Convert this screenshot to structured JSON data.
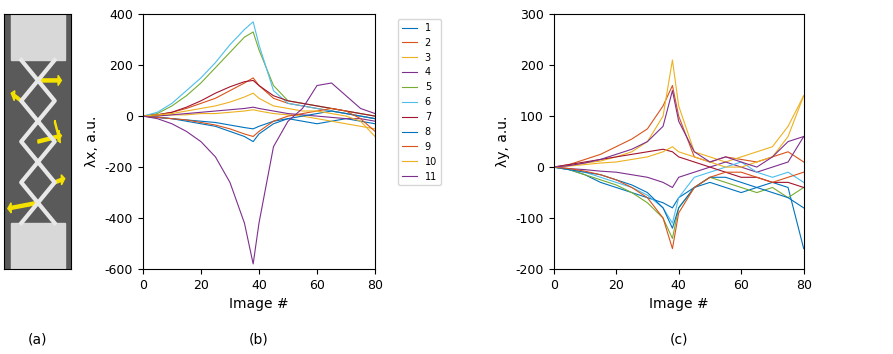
{
  "chart_data": [
    {
      "type": "line",
      "xlabel": "Image #",
      "ylabel": "λx, a.u.",
      "xlim": [
        0,
        80
      ],
      "xticks": [
        0,
        20,
        40,
        60,
        80
      ],
      "ylim": [
        -600,
        400
      ],
      "yticks": [
        -600,
        -400,
        -200,
        0,
        200,
        400
      ],
      "legend": "upper left",
      "x": [
        0,
        5,
        10,
        15,
        20,
        25,
        30,
        35,
        38,
        40,
        45,
        50,
        55,
        60,
        65,
        70,
        75,
        80
      ],
      "series": [
        {
          "name": "1",
          "color": "#0072BD",
          "values": [
            0,
            -5,
            -10,
            -15,
            -20,
            -25,
            -35,
            -45,
            -50,
            -40,
            -20,
            -10,
            -20,
            -30,
            -20,
            -10,
            -20,
            -30
          ]
        },
        {
          "name": "2",
          "color": "#D95319",
          "values": [
            0,
            5,
            15,
            30,
            50,
            70,
            100,
            130,
            150,
            120,
            70,
            50,
            40,
            30,
            20,
            10,
            0,
            -10
          ]
        },
        {
          "name": "3",
          "color": "#EDB120",
          "values": [
            0,
            2,
            5,
            5,
            10,
            10,
            15,
            20,
            25,
            20,
            10,
            5,
            0,
            -10,
            -20,
            -30,
            -40,
            -50
          ]
        },
        {
          "name": "4",
          "color": "#7E2F8E",
          "values": [
            0,
            0,
            5,
            10,
            15,
            20,
            25,
            30,
            35,
            30,
            20,
            10,
            5,
            0,
            -5,
            -10,
            -10,
            -20
          ]
        },
        {
          "name": "5",
          "color": "#77AC30",
          "values": [
            0,
            10,
            40,
            80,
            130,
            190,
            250,
            310,
            330,
            260,
            120,
            60,
            50,
            40,
            30,
            20,
            10,
            0
          ]
        },
        {
          "name": "6",
          "color": "#4DBEEE",
          "values": [
            0,
            15,
            50,
            100,
            150,
            210,
            280,
            340,
            370,
            280,
            100,
            50,
            40,
            30,
            20,
            10,
            0,
            -10
          ]
        },
        {
          "name": "7",
          "color": "#A2142F",
          "values": [
            0,
            5,
            15,
            35,
            60,
            90,
            115,
            135,
            140,
            120,
            80,
            60,
            50,
            40,
            30,
            20,
            10,
            0
          ]
        },
        {
          "name": "8",
          "color": "#0072BD",
          "values": [
            0,
            -5,
            -10,
            -20,
            -30,
            -40,
            -60,
            -80,
            -100,
            -70,
            -30,
            -10,
            0,
            10,
            20,
            10,
            0,
            -10
          ]
        },
        {
          "name": "9",
          "color": "#D95319",
          "values": [
            0,
            -5,
            -10,
            -15,
            -25,
            -35,
            -50,
            -70,
            -80,
            -60,
            -20,
            0,
            10,
            20,
            30,
            20,
            -10,
            -60
          ]
        },
        {
          "name": "10",
          "color": "#EDB120",
          "values": [
            0,
            5,
            10,
            20,
            30,
            40,
            55,
            75,
            90,
            70,
            40,
            30,
            20,
            20,
            10,
            0,
            -20,
            -80
          ]
        },
        {
          "name": "11",
          "color": "#7E2F8E",
          "values": [
            0,
            -10,
            -30,
            -60,
            -100,
            -160,
            -260,
            -420,
            -580,
            -420,
            -120,
            -20,
            30,
            120,
            130,
            80,
            30,
            10
          ]
        }
      ]
    },
    {
      "type": "line",
      "xlabel": "Image #",
      "ylabel": "λy, a.u.",
      "xlim": [
        0,
        80
      ],
      "xticks": [
        0,
        20,
        40,
        60,
        80
      ],
      "ylim": [
        -200,
        300
      ],
      "yticks": [
        -200,
        -100,
        0,
        100,
        200,
        300
      ],
      "x": [
        0,
        5,
        10,
        15,
        20,
        25,
        30,
        35,
        38,
        40,
        45,
        50,
        55,
        60,
        65,
        70,
        75,
        80
      ],
      "series": [
        {
          "color": "#0072BD",
          "values": [
            0,
            -5,
            -15,
            -30,
            -40,
            -50,
            -60,
            -70,
            -80,
            -60,
            -40,
            -30,
            -40,
            -50,
            -40,
            -30,
            -40,
            -160
          ]
        },
        {
          "color": "#D95319",
          "values": [
            0,
            5,
            15,
            25,
            40,
            55,
            75,
            120,
            160,
            100,
            20,
            10,
            20,
            15,
            10,
            20,
            30,
            10
          ]
        },
        {
          "color": "#EDB120",
          "values": [
            0,
            3,
            8,
            12,
            20,
            30,
            50,
            100,
            210,
            120,
            30,
            20,
            10,
            20,
            30,
            40,
            80,
            140
          ]
        },
        {
          "color": "#7E2F8E",
          "values": [
            0,
            -3,
            -5,
            -8,
            -10,
            -15,
            -20,
            -30,
            -40,
            -20,
            -10,
            0,
            10,
            0,
            -10,
            0,
            10,
            60
          ]
        },
        {
          "color": "#77AC30",
          "values": [
            0,
            -5,
            -15,
            -25,
            -35,
            -50,
            -70,
            -100,
            -140,
            -80,
            -40,
            -20,
            -30,
            -40,
            -50,
            -40,
            -60,
            -40
          ]
        },
        {
          "color": "#4DBEEE",
          "values": [
            0,
            -5,
            -10,
            -20,
            -30,
            -40,
            -55,
            -80,
            -110,
            -60,
            -20,
            -10,
            0,
            10,
            -10,
            -20,
            -10,
            -30
          ]
        },
        {
          "color": "#A2142F",
          "values": [
            0,
            5,
            10,
            15,
            20,
            25,
            30,
            35,
            30,
            20,
            10,
            0,
            -10,
            -20,
            -20,
            -30,
            -30,
            -40
          ]
        },
        {
          "color": "#0072BD",
          "values": [
            0,
            -5,
            -10,
            -15,
            -25,
            -35,
            -50,
            -80,
            -120,
            -80,
            -40,
            -20,
            -20,
            -30,
            -40,
            -50,
            -60,
            -80
          ]
        },
        {
          "color": "#D95319",
          "values": [
            0,
            -3,
            -8,
            -15,
            -25,
            -40,
            -60,
            -100,
            -160,
            -90,
            -40,
            -20,
            -10,
            -10,
            -20,
            -30,
            -20,
            -10
          ]
        },
        {
          "color": "#EDB120",
          "values": [
            0,
            2,
            5,
            8,
            10,
            15,
            20,
            30,
            40,
            30,
            20,
            10,
            0,
            0,
            10,
            20,
            60,
            140
          ]
        },
        {
          "color": "#7E2F8E",
          "values": [
            0,
            3,
            8,
            15,
            25,
            35,
            50,
            80,
            150,
            90,
            30,
            10,
            20,
            10,
            0,
            20,
            50,
            60
          ]
        }
      ]
    }
  ],
  "panel_labels": [
    "(a)",
    "(b)",
    "(c)"
  ]
}
